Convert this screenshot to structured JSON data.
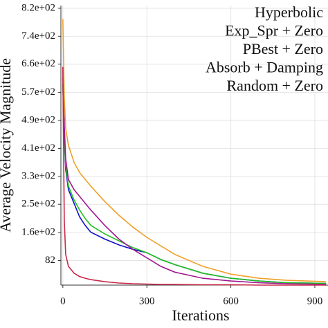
{
  "chart_data": {
    "type": "line",
    "x_label": "Iterations",
    "y_label": "Average Velocity Magnitude",
    "x": [
      0,
      5,
      10,
      20,
      40,
      60,
      80,
      100,
      150,
      200,
      250,
      300,
      350,
      400,
      500,
      600,
      700,
      800,
      940
    ],
    "series": [
      {
        "name": "Hyperbolic",
        "color": "#1010c8",
        "values": [
          600,
          450,
          350,
          290,
          250,
          210,
          185,
          165,
          145,
          128,
          115,
          105,
          85,
          70,
          45,
          30,
          22,
          17,
          15
        ]
      },
      {
        "name": "Exp_Spr + Zero",
        "color": "#20c020",
        "values": [
          600,
          460,
          360,
          300,
          260,
          230,
          205,
          185,
          160,
          140,
          120,
          105,
          85,
          70,
          45,
          30,
          22,
          17,
          15
        ]
      },
      {
        "name": "PBest + Zero",
        "color": "#a01890",
        "values": [
          620,
          480,
          380,
          320,
          290,
          270,
          250,
          230,
          185,
          145,
          115,
          90,
          65,
          48,
          30,
          22,
          17,
          14,
          12
        ]
      },
      {
        "name": "Absorb + Damping",
        "color": "#f0a028",
        "values": [
          790,
          560,
          470,
          420,
          370,
          340,
          320,
          300,
          255,
          215,
          180,
          150,
          125,
          100,
          65,
          42,
          30,
          24,
          20
        ]
      },
      {
        "name": "Random + Zero",
        "color": "#c82848",
        "values": [
          650,
          200,
          100,
          65,
          45,
          35,
          30,
          26,
          20,
          16,
          14,
          13,
          12,
          12,
          11,
          11,
          10,
          10,
          10
        ]
      }
    ],
    "xlim": [
      -7,
      947
    ],
    "xticks": [
      0,
      300,
      600,
      900
    ],
    "ylim": [
      10,
      830
    ],
    "yticks": [
      82,
      {
        "value": 164,
        "label": "1.6e+02"
      },
      {
        "value": 247,
        "label": "2.5e+02"
      },
      {
        "value": 329,
        "label": "3.3e+02"
      },
      {
        "value": 411,
        "label": "4.1e+02"
      },
      {
        "value": 493,
        "label": "4.9e+02"
      },
      {
        "value": 575,
        "label": "5.7e+02"
      },
      {
        "value": 658,
        "label": "6.6e+02"
      },
      {
        "value": 740,
        "label": "7.4e+02"
      },
      {
        "value": 822,
        "label": "8.2e+02"
      }
    ],
    "grid": true,
    "legend": "upper right"
  }
}
